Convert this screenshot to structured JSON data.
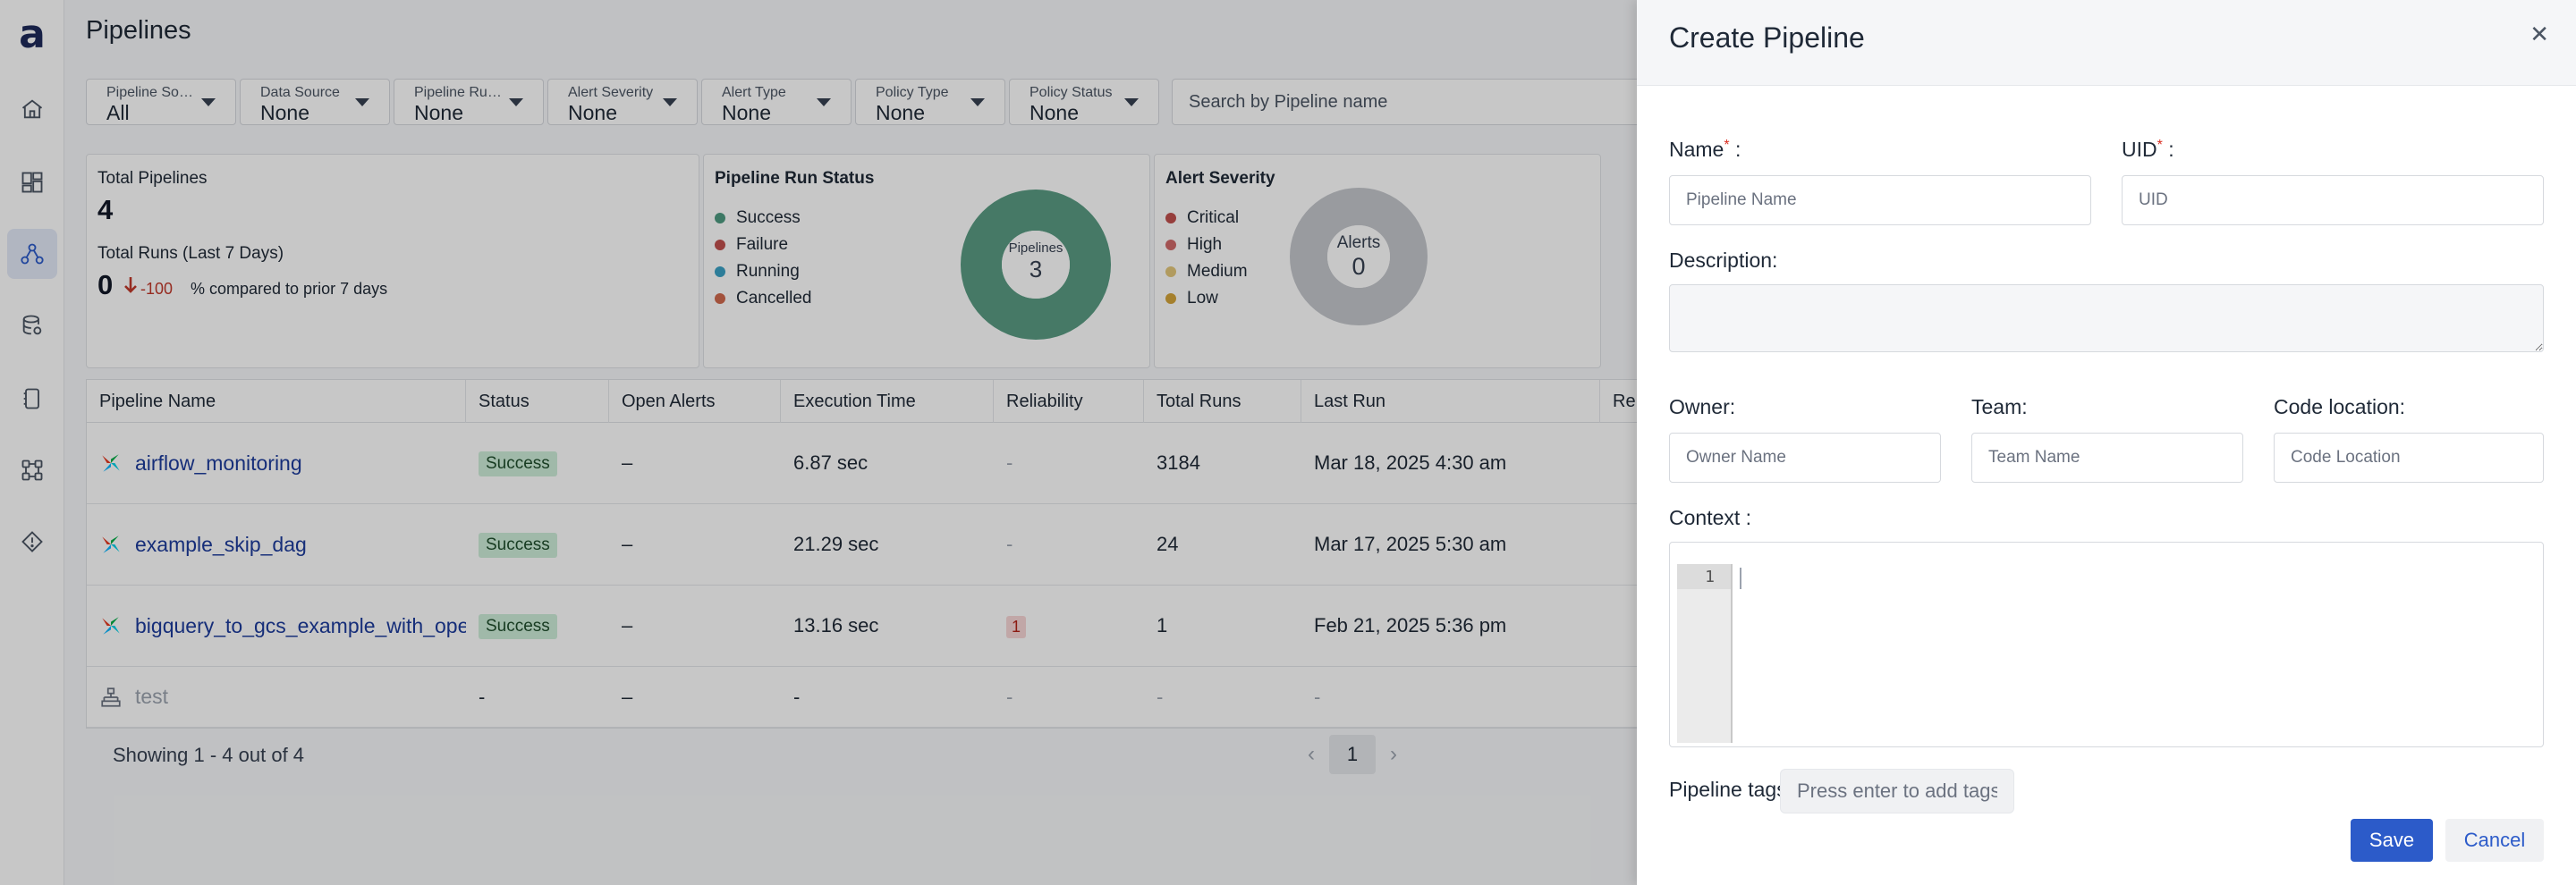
{
  "app": {
    "logo": "a"
  },
  "nav": {
    "items": [
      {
        "icon": "home-icon"
      },
      {
        "icon": "dashboard-icon"
      },
      {
        "icon": "pipeline-icon",
        "active": true
      },
      {
        "icon": "database-icon"
      },
      {
        "icon": "reports-icon"
      },
      {
        "icon": "integrations-icon"
      },
      {
        "icon": "alerts-icon"
      }
    ]
  },
  "page": {
    "title": "Pipelines"
  },
  "filters": [
    {
      "label": "Pipeline Source",
      "value": "All"
    },
    {
      "label": "Data Source",
      "value": "None"
    },
    {
      "label": "Pipeline Run Status",
      "value": "None"
    },
    {
      "label": "Alert Severity",
      "value": "None"
    },
    {
      "label": "Alert Type",
      "value": "None"
    },
    {
      "label": "Policy Type",
      "value": "None"
    },
    {
      "label": "Policy Status",
      "value": "None"
    }
  ],
  "search": {
    "placeholder": "Search by Pipeline name"
  },
  "summary": {
    "total_pipelines_label": "Total Pipelines",
    "total_pipelines_value": "4",
    "total_runs_label": "Total Runs (Last 7 Days)",
    "total_runs_value": "0",
    "change_pct": "-100",
    "compare_text": "% compared to prior 7 days"
  },
  "run_status": {
    "title": "Pipeline Run Status",
    "legend": [
      {
        "label": "Success",
        "color": "#4e9a80"
      },
      {
        "label": "Failure",
        "color": "#c0504d"
      },
      {
        "label": "Running",
        "color": "#3aa0c4"
      },
      {
        "label": "Cancelled",
        "color": "#d06a4e"
      }
    ],
    "center_label": "Pipelines",
    "center_value": "3",
    "ring_color": "#5a9c83"
  },
  "alert_severity": {
    "title": "Alert Severity",
    "legend": [
      {
        "label": "Critical",
        "color": "#c0504d"
      },
      {
        "label": "High",
        "color": "#d06a6a"
      },
      {
        "label": "Medium",
        "color": "#e3c77a"
      },
      {
        "label": "Low",
        "color": "#d4a43a"
      }
    ],
    "center_label": "Alerts",
    "center_value": "0",
    "ring_color": "#c4c7cc"
  },
  "table": {
    "columns": [
      "Pipeline Name",
      "Status",
      "Open Alerts",
      "Execution Time",
      "Reliability",
      "Total Runs",
      "Last Run",
      "Re"
    ],
    "rows": [
      {
        "name": "airflow_monitoring",
        "status": "Success",
        "alerts": "–",
        "exec": "6.87 sec",
        "reliability": "-",
        "runs": "3184",
        "last": "Mar 18, 2025 4:30 am"
      },
      {
        "name": "example_skip_dag",
        "status": "Success",
        "alerts": "–",
        "exec": "21.29 sec",
        "reliability": "-",
        "runs": "24",
        "last": "Mar 17, 2025 5:30 am"
      },
      {
        "name": "bigquery_to_gcs_example_with_operators",
        "status": "Success",
        "alerts": "–",
        "exec": "13.16 sec",
        "reliability": "1",
        "runs": "1",
        "last": "Feb 21, 2025 5:36 pm"
      },
      {
        "name": "test",
        "status": "-",
        "alerts": "–",
        "exec": "-",
        "reliability": "-",
        "runs": "-",
        "last": "-"
      }
    ],
    "showing": "Showing 1 - 4 out of 4",
    "page": "1"
  },
  "drawer": {
    "title": "Create Pipeline",
    "name_label": "Name",
    "name_placeholder": "Pipeline Name",
    "uid_label": "UID",
    "uid_placeholder": "UID",
    "description_label": "Description:",
    "owner_label": "Owner:",
    "owner_placeholder": "Owner Name",
    "team_label": "Team:",
    "team_placeholder": "Team Name",
    "code_label": "Code location:",
    "code_placeholder": "Code Location",
    "context_label": "Context :",
    "editor_line": "1",
    "tags_label": "Pipeline tags",
    "tags_placeholder": "Press enter to add tags",
    "save_label": "Save",
    "cancel_label": "Cancel",
    "required_mark": "*",
    "colon": " :"
  }
}
